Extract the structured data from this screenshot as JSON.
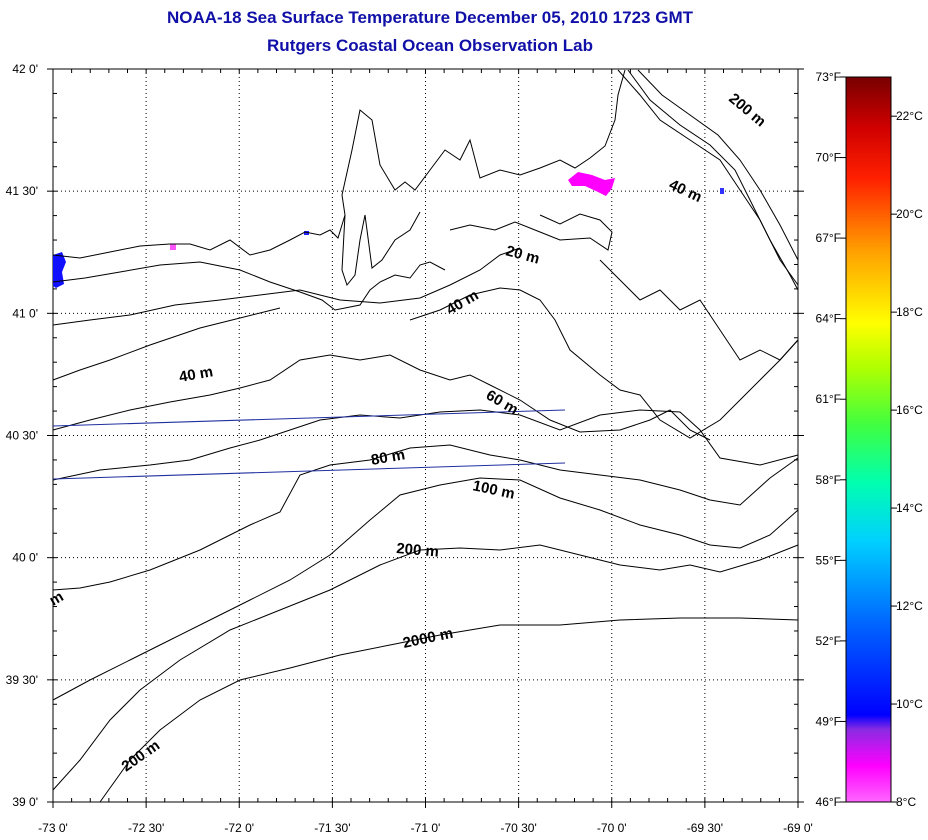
{
  "header": {
    "title": "NOAA-18 Sea Surface Temperature December 05, 2010 1723 GMT",
    "subtitle": "Rutgers Coastal Ocean Observation Lab"
  },
  "map": {
    "lon_range": [
      -73,
      -69
    ],
    "lat_range": [
      39,
      42
    ],
    "lon_ticks": [
      "-73 0'",
      "-72 30'",
      "-72 0'",
      "-71 30'",
      "-71 0'",
      "-70 30'",
      "-70 0'",
      "-69 30'",
      "-69 0'"
    ],
    "lat_ticks": [
      "42 0'",
      "41 30'",
      "41 0'",
      "40 30'",
      "40 0'",
      "39 30'",
      "39 0'"
    ],
    "grid": "dotted",
    "contour_labels": [
      {
        "text": "200 m"
      },
      {
        "text": "40 m"
      },
      {
        "text": "20 m"
      },
      {
        "text": "40 m"
      },
      {
        "text": "40 m"
      },
      {
        "text": "60 m"
      },
      {
        "text": "80 m"
      },
      {
        "text": "100 m"
      },
      {
        "text": "200 m"
      },
      {
        "text": "2000 m"
      },
      {
        "text": "200 m"
      },
      {
        "text": "m"
      }
    ]
  },
  "colorbar": {
    "fahrenheit_labels": [
      "73°F",
      "70°F",
      "67°F",
      "64°F",
      "61°F",
      "58°F",
      "55°F",
      "52°F",
      "49°F",
      "46°F"
    ],
    "celsius_labels": [
      "22°C",
      "20°C",
      "18°C",
      "16°C",
      "14°C",
      "12°C",
      "10°C",
      "8°C"
    ],
    "range_f": [
      46,
      73
    ],
    "range_c": [
      8,
      22.8
    ]
  },
  "colors": {
    "title": "#1010a8",
    "sst_cold": "#ff00ff",
    "sst_10c": "#0000ff",
    "contour": "#000000",
    "track_line": "#1f2fa0"
  }
}
